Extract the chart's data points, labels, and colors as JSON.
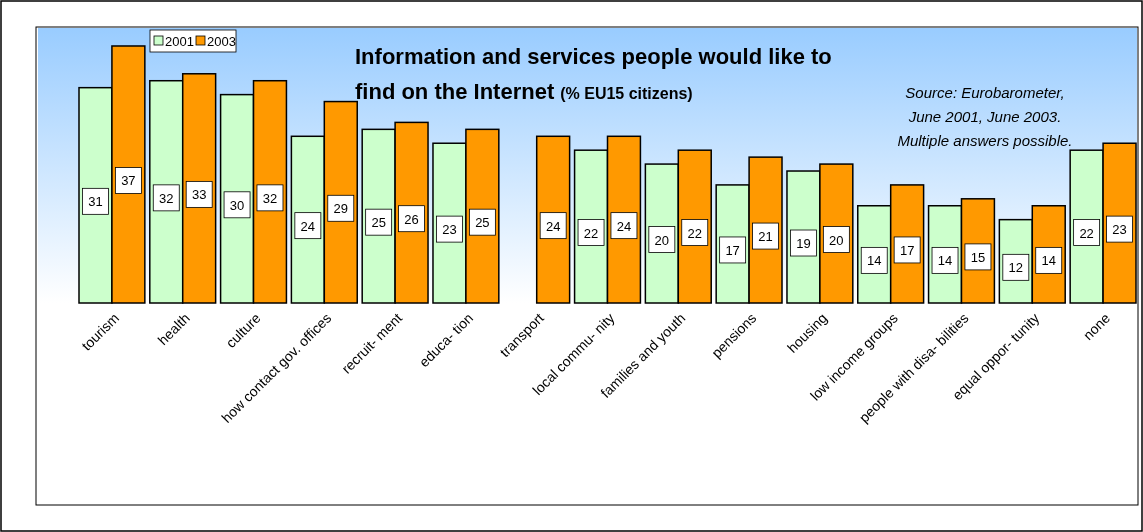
{
  "chart_data": {
    "type": "bar",
    "title": "Information and services people would like to find on the Internet",
    "subtitle": "(% EU15 citizens)",
    "annotations": [
      "Source: Eurobarometer,",
      "June 2001, June 2003.",
      "Multiple answers possible."
    ],
    "categories": [
      "tourism",
      "health",
      "culture",
      "how contact gov. offices",
      "recruit- ment",
      "educa- tion",
      "transport",
      "local commu- nity",
      "families and youth",
      "pensions",
      "housing",
      "low income groups",
      "people with disa- bilities",
      "equal oppor- tunity",
      "none"
    ],
    "series": [
      {
        "name": "2001",
        "color": "#ccffcc",
        "values": [
          31,
          32,
          30,
          24,
          25,
          23,
          null,
          22,
          20,
          17,
          19,
          14,
          14,
          12,
          22
        ]
      },
      {
        "name": "2003",
        "color": "#ff9900",
        "values": [
          37,
          33,
          32,
          29,
          26,
          25,
          24,
          24,
          22,
          21,
          20,
          17,
          15,
          14,
          23
        ]
      }
    ],
    "data_labels": true,
    "legend": "top left",
    "grid": false
  }
}
